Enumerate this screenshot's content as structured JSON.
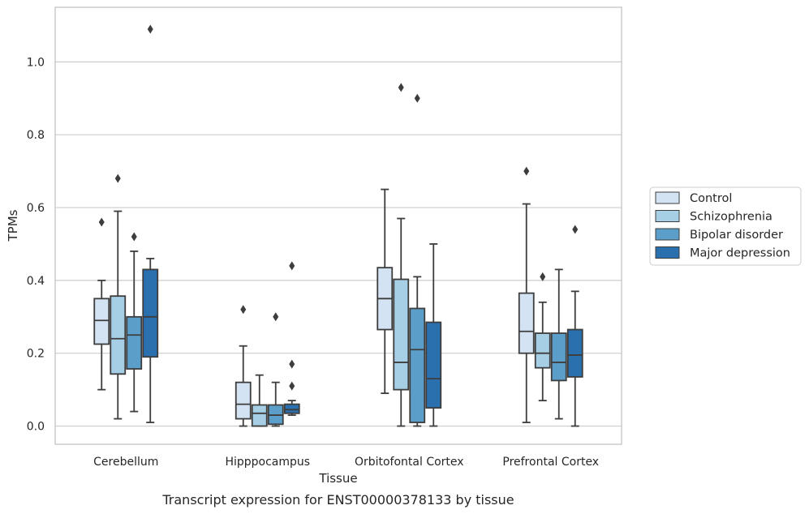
{
  "chart_data": {
    "type": "box",
    "xlabel": "Tissue",
    "ylabel": "TPMs",
    "caption": "Transcript expression for ENST00000378133 by tissue",
    "ylim": [
      -0.05,
      1.15
    ],
    "yticks": [
      "0.0",
      "0.2",
      "0.4",
      "0.6",
      "0.8",
      "1.0"
    ],
    "grid": "horizontal",
    "legend_position": "right",
    "categories": [
      "Cerebellum",
      "Hipppocampus",
      "Orbitofontal Cortex",
      "Prefrontal Cortex"
    ],
    "series": [
      {
        "name": "Control",
        "color": "#d3e3f3",
        "boxes": [
          {
            "low": 0.1,
            "q1": 0.225,
            "median": 0.29,
            "q3": 0.35,
            "high": 0.4,
            "outliers": [
              0.56
            ]
          },
          {
            "low": 0.0,
            "q1": 0.02,
            "median": 0.06,
            "q3": 0.12,
            "high": 0.22,
            "outliers": [
              0.32
            ]
          },
          {
            "low": 0.09,
            "q1": 0.265,
            "median": 0.35,
            "q3": 0.435,
            "high": 0.65,
            "outliers": []
          },
          {
            "low": 0.01,
            "q1": 0.2,
            "median": 0.26,
            "q3": 0.365,
            "high": 0.61,
            "outliers": [
              0.7
            ]
          }
        ]
      },
      {
        "name": "Schizophrenia",
        "color": "#a6cee4",
        "boxes": [
          {
            "low": 0.02,
            "q1": 0.143,
            "median": 0.24,
            "q3": 0.357,
            "high": 0.59,
            "outliers": [
              0.68
            ]
          },
          {
            "low": 0.0,
            "q1": 0.0,
            "median": 0.035,
            "q3": 0.058,
            "high": 0.14,
            "outliers": []
          },
          {
            "low": 0.0,
            "q1": 0.1,
            "median": 0.175,
            "q3": 0.403,
            "high": 0.57,
            "outliers": [
              0.93
            ]
          },
          {
            "low": 0.07,
            "q1": 0.16,
            "median": 0.2,
            "q3": 0.255,
            "high": 0.34,
            "outliers": [
              0.41
            ]
          }
        ]
      },
      {
        "name": "Bipolar disorder",
        "color": "#5b9ec9",
        "boxes": [
          {
            "low": 0.04,
            "q1": 0.157,
            "median": 0.25,
            "q3": 0.3,
            "high": 0.48,
            "outliers": [
              0.52
            ]
          },
          {
            "low": 0.0,
            "q1": 0.005,
            "median": 0.03,
            "q3": 0.058,
            "high": 0.12,
            "outliers": [
              0.3
            ]
          },
          {
            "low": 0.0,
            "q1": 0.01,
            "median": 0.21,
            "q3": 0.323,
            "high": 0.41,
            "outliers": [
              0.9
            ]
          },
          {
            "low": 0.02,
            "q1": 0.125,
            "median": 0.175,
            "q3": 0.255,
            "high": 0.43,
            "outliers": []
          }
        ]
      },
      {
        "name": "Major depression",
        "color": "#2a6fae",
        "boxes": [
          {
            "low": 0.01,
            "q1": 0.19,
            "median": 0.3,
            "q3": 0.43,
            "high": 0.46,
            "outliers": [
              1.09
            ]
          },
          {
            "low": 0.03,
            "q1": 0.035,
            "median": 0.045,
            "q3": 0.06,
            "high": 0.07,
            "outliers": [
              0.44,
              0.17,
              0.11
            ]
          },
          {
            "low": 0.0,
            "q1": 0.05,
            "median": 0.13,
            "q3": 0.285,
            "high": 0.5,
            "outliers": []
          },
          {
            "low": 0.0,
            "q1": 0.135,
            "median": 0.195,
            "q3": 0.265,
            "high": 0.37,
            "outliers": [
              0.54
            ]
          }
        ]
      }
    ]
  }
}
